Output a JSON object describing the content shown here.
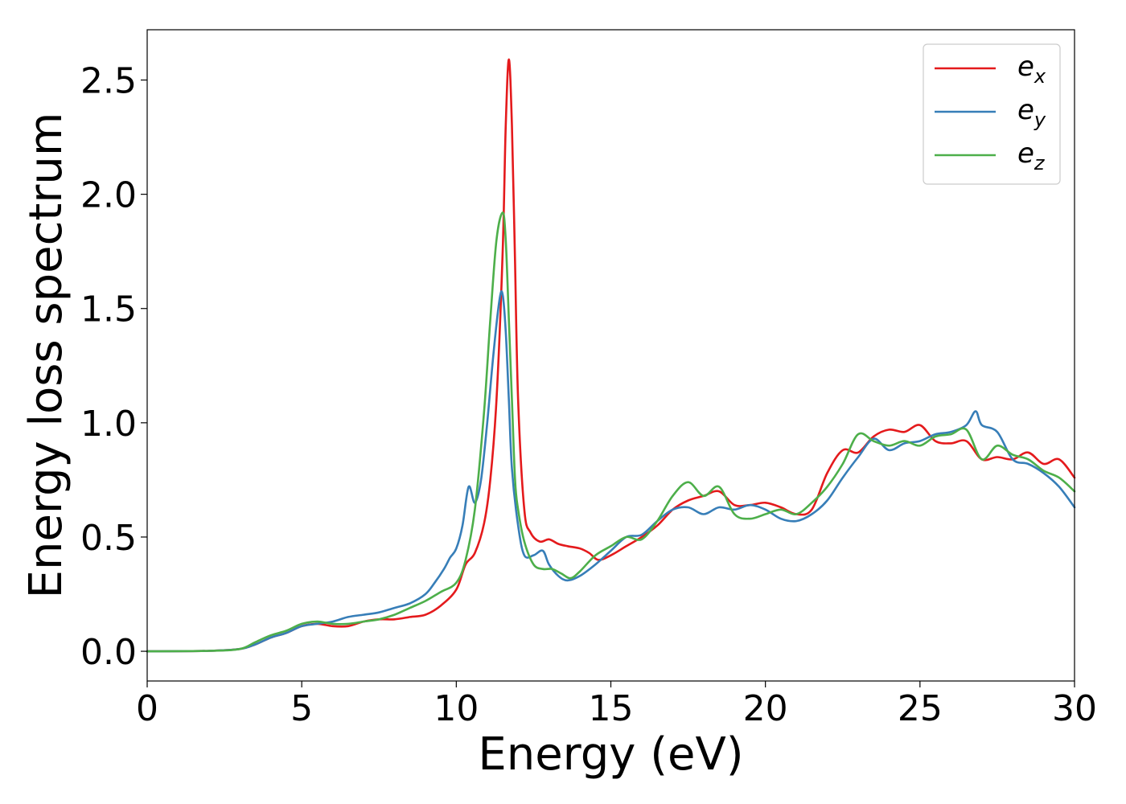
{
  "chart_data": {
    "type": "line",
    "title": "",
    "xlabel": "Energy (eV)",
    "ylabel": "Energy loss spectrum",
    "xlim": [
      0,
      30
    ],
    "ylim": [
      -0.13,
      2.72
    ],
    "xticks": [
      "0",
      "5",
      "10",
      "15",
      "20",
      "25",
      "30"
    ],
    "yticks": [
      "0.0",
      "0.5",
      "1.0",
      "1.5",
      "2.0",
      "2.5"
    ],
    "grid": false,
    "legend_position": "top-right",
    "colors": {
      "e_x": "#e41a1c",
      "e_y": "#377eb8",
      "e_z": "#4daf4a"
    },
    "series": [
      {
        "name": "e_x",
        "legend_base": "e",
        "legend_sub": "x",
        "color": "#e41a1c",
        "x": [
          0,
          2,
          3,
          3.5,
          4,
          4.5,
          5,
          5.5,
          6,
          6.5,
          7,
          7.5,
          8,
          8.5,
          9,
          9.5,
          10,
          10.3,
          10.6,
          10.9,
          11.1,
          11.3,
          11.5,
          11.6,
          11.7,
          11.8,
          11.9,
          12.0,
          12.2,
          12.4,
          12.7,
          13.0,
          13.3,
          13.6,
          14.0,
          14.3,
          14.6,
          15.0,
          15.5,
          16.0,
          16.5,
          17.0,
          17.5,
          18.0,
          18.5,
          19.0,
          19.5,
          20.0,
          20.5,
          21.0,
          21.5,
          22.0,
          22.5,
          23.0,
          23.5,
          24.0,
          24.5,
          25.0,
          25.5,
          26.0,
          26.5,
          27.0,
          27.5,
          28.0,
          28.5,
          29.0,
          29.5,
          30.0
        ],
        "values": [
          0,
          0.002,
          0.01,
          0.03,
          0.06,
          0.08,
          0.11,
          0.12,
          0.11,
          0.11,
          0.13,
          0.14,
          0.14,
          0.15,
          0.16,
          0.2,
          0.27,
          0.38,
          0.43,
          0.56,
          0.75,
          1.1,
          1.75,
          2.3,
          2.59,
          2.3,
          1.7,
          1.1,
          0.62,
          0.52,
          0.48,
          0.49,
          0.47,
          0.46,
          0.45,
          0.43,
          0.4,
          0.42,
          0.46,
          0.5,
          0.55,
          0.62,
          0.66,
          0.68,
          0.7,
          0.64,
          0.64,
          0.65,
          0.63,
          0.6,
          0.62,
          0.78,
          0.88,
          0.87,
          0.94,
          0.97,
          0.96,
          0.99,
          0.92,
          0.91,
          0.92,
          0.84,
          0.85,
          0.84,
          0.87,
          0.82,
          0.84,
          0.76
        ]
      },
      {
        "name": "e_y",
        "legend_base": "e",
        "legend_sub": "y",
        "color": "#377eb8",
        "x": [
          0,
          2,
          3,
          3.5,
          4,
          4.5,
          5,
          5.5,
          6,
          6.5,
          7,
          7.5,
          8,
          8.5,
          9,
          9.3,
          9.6,
          9.8,
          10.0,
          10.2,
          10.4,
          10.6,
          10.8,
          11.0,
          11.2,
          11.4,
          11.5,
          11.6,
          11.7,
          11.8,
          12.0,
          12.2,
          12.5,
          12.8,
          13.0,
          13.3,
          13.6,
          14.0,
          14.5,
          15.0,
          15.5,
          16.0,
          16.5,
          17.0,
          17.5,
          18.0,
          18.5,
          19.0,
          19.5,
          20.0,
          20.5,
          21.0,
          21.5,
          22.0,
          22.5,
          23.0,
          23.5,
          24.0,
          24.5,
          25.0,
          25.5,
          26.0,
          26.5,
          26.8,
          27.0,
          27.5,
          28.0,
          28.5,
          29.0,
          29.5,
          30.0
        ],
        "values": [
          0,
          0.002,
          0.01,
          0.03,
          0.06,
          0.08,
          0.11,
          0.12,
          0.13,
          0.15,
          0.16,
          0.17,
          0.19,
          0.21,
          0.25,
          0.3,
          0.36,
          0.41,
          0.45,
          0.55,
          0.72,
          0.65,
          0.75,
          1.0,
          1.3,
          1.54,
          1.56,
          1.4,
          1.1,
          0.8,
          0.55,
          0.42,
          0.42,
          0.44,
          0.38,
          0.33,
          0.31,
          0.33,
          0.38,
          0.44,
          0.5,
          0.51,
          0.57,
          0.62,
          0.63,
          0.6,
          0.63,
          0.62,
          0.64,
          0.62,
          0.58,
          0.57,
          0.6,
          0.66,
          0.76,
          0.85,
          0.93,
          0.88,
          0.91,
          0.92,
          0.95,
          0.96,
          0.99,
          1.05,
          0.99,
          0.96,
          0.84,
          0.82,
          0.78,
          0.72,
          0.63
        ]
      },
      {
        "name": "e_z",
        "legend_base": "e",
        "legend_sub": "z",
        "color": "#4daf4a",
        "x": [
          0,
          2,
          3,
          3.5,
          4,
          4.5,
          5,
          5.5,
          6,
          6.5,
          7,
          7.5,
          8,
          8.5,
          9,
          9.5,
          10,
          10.3,
          10.6,
          10.9,
          11.1,
          11.3,
          11.5,
          11.6,
          11.7,
          11.8,
          11.9,
          12.0,
          12.2,
          12.5,
          12.8,
          13.1,
          13.4,
          13.7,
          14.0,
          14.5,
          15.0,
          15.5,
          16.0,
          16.5,
          17.0,
          17.5,
          18.0,
          18.5,
          19.0,
          19.5,
          20.0,
          20.5,
          21.0,
          21.5,
          22.0,
          22.5,
          23.0,
          23.5,
          24.0,
          24.5,
          25.0,
          25.5,
          26.0,
          26.5,
          27.0,
          27.5,
          28.0,
          28.5,
          29.0,
          29.5,
          30.0
        ],
        "values": [
          0,
          0.002,
          0.01,
          0.04,
          0.07,
          0.09,
          0.12,
          0.13,
          0.12,
          0.12,
          0.13,
          0.14,
          0.16,
          0.19,
          0.22,
          0.26,
          0.3,
          0.4,
          0.62,
          1.05,
          1.45,
          1.8,
          1.92,
          1.8,
          1.45,
          1.1,
          0.75,
          0.62,
          0.48,
          0.38,
          0.36,
          0.36,
          0.34,
          0.32,
          0.35,
          0.42,
          0.46,
          0.5,
          0.49,
          0.57,
          0.68,
          0.74,
          0.68,
          0.72,
          0.6,
          0.58,
          0.6,
          0.62,
          0.6,
          0.65,
          0.72,
          0.82,
          0.95,
          0.92,
          0.9,
          0.92,
          0.9,
          0.94,
          0.95,
          0.97,
          0.84,
          0.9,
          0.86,
          0.84,
          0.79,
          0.76,
          0.7
        ]
      }
    ]
  }
}
